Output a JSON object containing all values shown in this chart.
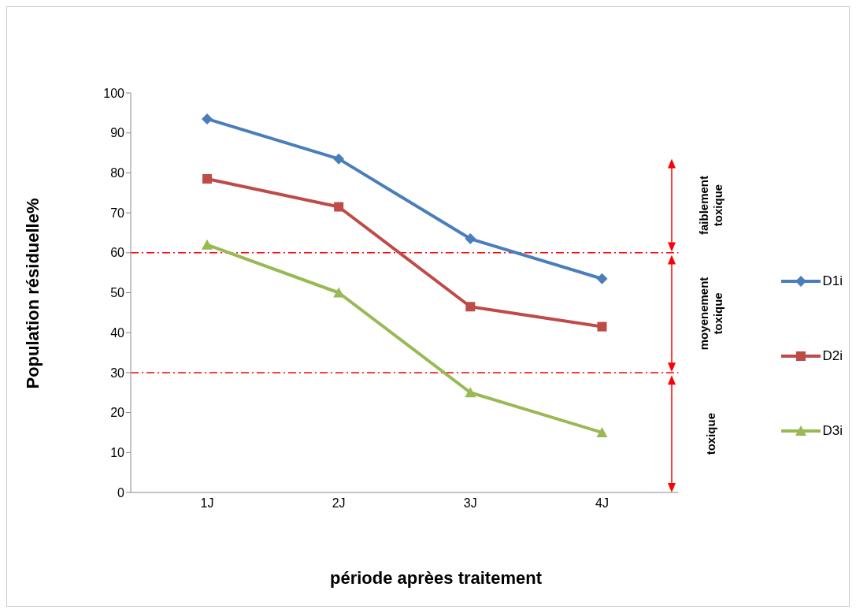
{
  "chart_data": {
    "type": "line",
    "xlabel": "période aprèes traitement",
    "ylabel": "Population résiduelle%",
    "categories": [
      "1J",
      "2J",
      "3J",
      "4J"
    ],
    "series": [
      {
        "name": "D1i",
        "color": "#4a7ebb",
        "marker": "diamond",
        "values": [
          93.5,
          83.5,
          63.5,
          53.5
        ]
      },
      {
        "name": "D2i",
        "color": "#be4b48",
        "marker": "square",
        "values": [
          78.5,
          71.5,
          46.5,
          41.5
        ]
      },
      {
        "name": "D3i",
        "color": "#98b954",
        "marker": "triangle",
        "values": [
          62,
          50,
          25,
          15
        ]
      }
    ],
    "ylim": [
      0,
      100
    ],
    "yticks": [
      0,
      10,
      20,
      30,
      40,
      50,
      60,
      70,
      80,
      90,
      100
    ],
    "grid": false,
    "legend": "right",
    "ref_lines": [
      {
        "axis": "y",
        "value": 60,
        "color": "#ff0000",
        "line_style": "dashdot"
      },
      {
        "axis": "y",
        "value": 30,
        "color": "#ff0000",
        "line_style": "dashdot"
      }
    ],
    "annotations": [
      "toxique",
      "moyenement toxique",
      "faiblement toxique"
    ]
  }
}
